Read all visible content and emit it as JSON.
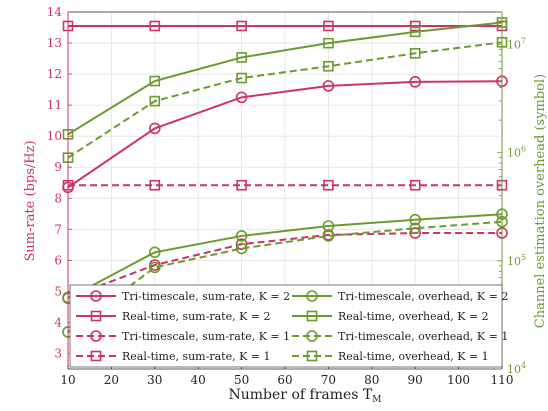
{
  "chart_data": {
    "type": "line",
    "xlabel": "Number of frames T",
    "xlabel_sub": "M",
    "ylabel_left": "Sum-rate (bps/Hz)",
    "ylabel_right": "Channel estimation overhead (symbol)",
    "x": [
      10,
      30,
      50,
      70,
      90,
      110
    ],
    "x_ticks": [
      10,
      20,
      30,
      40,
      50,
      60,
      70,
      80,
      90,
      100,
      110
    ],
    "xlim": [
      10,
      110
    ],
    "ylim_left": [
      2.5,
      14
    ],
    "yticks_left": [
      3,
      4,
      5,
      6,
      7,
      8,
      9,
      10,
      11,
      12,
      13,
      14
    ],
    "ylim_right": [
      10000,
      20000000
    ],
    "yscale_right": "log",
    "yticks_right": [
      {
        "value": 10000,
        "base": "10",
        "exp": "4"
      },
      {
        "value": 100000,
        "base": "10",
        "exp": "5"
      },
      {
        "value": 1000000,
        "base": "10",
        "exp": "6"
      },
      {
        "value": 10000000,
        "base": "10",
        "exp": "7"
      }
    ],
    "grid": true,
    "legend_position": "bottom-left",
    "colors": {
      "sumrate": "#cc3366",
      "overhead": "#6b9b2f",
      "left_axis": "#cc3366",
      "right_axis": "#6b9b2f"
    },
    "series": [
      {
        "name": "Tri-timescale, sum-rate, K = 2",
        "axis": "left",
        "color": "#cc3366",
        "dash": "solid",
        "marker": "circle",
        "values": [
          8.35,
          10.25,
          11.25,
          11.62,
          11.75,
          11.77
        ]
      },
      {
        "name": "Real-time, sum-rate, K = 2",
        "axis": "left",
        "color": "#cc3366",
        "dash": "solid",
        "marker": "square",
        "values": [
          13.55,
          13.55,
          13.55,
          13.55,
          13.55,
          13.55
        ]
      },
      {
        "name": "Tri-timescale, sum-rate, K = 1",
        "axis": "left",
        "color": "#cc3366",
        "dash": "dashed",
        "marker": "circle",
        "values": [
          4.8,
          5.85,
          6.52,
          6.82,
          6.88,
          6.88
        ]
      },
      {
        "name": "Real-time, sum-rate, K = 1",
        "axis": "left",
        "color": "#cc3366",
        "dash": "dashed",
        "marker": "square",
        "values": [
          8.42,
          8.42,
          8.42,
          8.42,
          8.42,
          8.42
        ]
      },
      {
        "name": "Tri-timescale, overhead, K = 2",
        "axis": "right",
        "color": "#6b9b2f",
        "dash": "solid",
        "marker": "circle",
        "values": [
          45000,
          120000,
          170000,
          210000,
          240000,
          270000
        ]
      },
      {
        "name": "Real-time, overhead, K = 2",
        "axis": "right",
        "color": "#6b9b2f",
        "dash": "solid",
        "marker": "square",
        "values": [
          1480000,
          4600000,
          7600000,
          10300000,
          13100000,
          16000000
        ]
      },
      {
        "name": "Tri-timescale, overhead, K = 1",
        "axis": "right",
        "color": "#6b9b2f",
        "dash": "dashed",
        "marker": "circle",
        "values": [
          22000,
          87000,
          130000,
          170000,
          200000,
          230000
        ]
      },
      {
        "name": "Real-time, overhead, K = 1",
        "axis": "right",
        "color": "#6b9b2f",
        "dash": "dashed",
        "marker": "square",
        "values": [
          900000,
          3000000,
          4900000,
          6300000,
          8300000,
          10500000
        ]
      }
    ]
  }
}
